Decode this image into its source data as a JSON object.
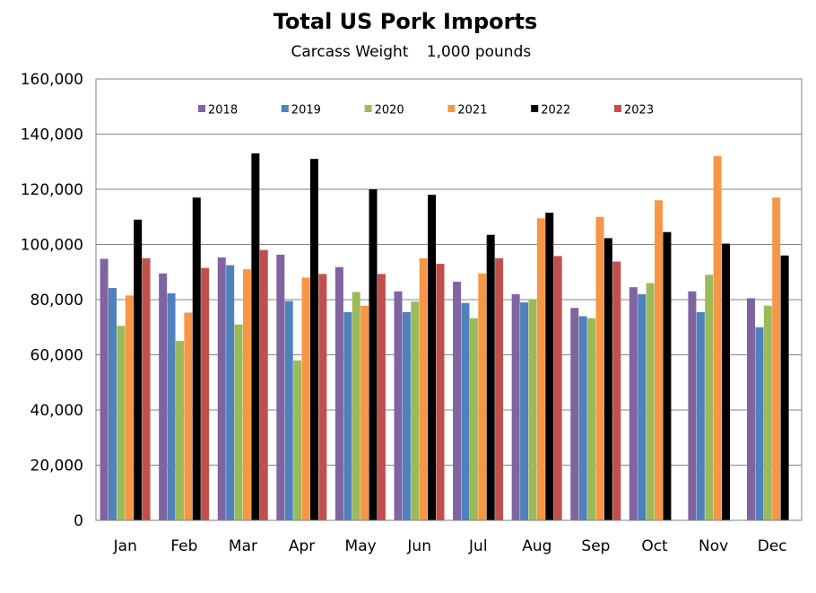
{
  "chart_data": {
    "type": "bar",
    "title": "Total US Pork Imports",
    "subtitle_left": "Carcass  Weight",
    "subtitle_right": "1,000 pounds",
    "xlabel": "",
    "ylabel": "",
    "ylim": [
      0,
      160000
    ],
    "y_ticks": [
      0,
      20000,
      40000,
      60000,
      80000,
      100000,
      120000,
      140000,
      160000
    ],
    "y_tick_labels": [
      "0",
      "20,000",
      "40,000",
      "60,000",
      "80,000",
      "100,000",
      "120,000",
      "140,000",
      "160,000"
    ],
    "grid": true,
    "legend_position": "top-center",
    "categories": [
      "Jan",
      "Feb",
      "Mar",
      "Apr",
      "May",
      "Jun",
      "Jul",
      "Aug",
      "Sep",
      "Oct",
      "Nov",
      "Dec"
    ],
    "series": [
      {
        "name": "2018",
        "color": "#8064A2",
        "values": [
          94800,
          89500,
          95300,
          96300,
          91800,
          83000,
          86500,
          82000,
          77000,
          84500,
          83000,
          80500
        ]
      },
      {
        "name": "2019",
        "color": "#4F81BD",
        "values": [
          84200,
          82300,
          92500,
          79500,
          75500,
          75500,
          78800,
          79000,
          74000,
          82000,
          75500,
          70000
        ]
      },
      {
        "name": "2020",
        "color": "#9BBB59",
        "values": [
          70500,
          65000,
          71000,
          58000,
          82800,
          79300,
          73300,
          80000,
          73300,
          86000,
          89000,
          77800
        ]
      },
      {
        "name": "2021",
        "color": "#F79646",
        "values": [
          81500,
          75300,
          91000,
          88000,
          77800,
          95000,
          89500,
          109500,
          110000,
          116000,
          132000,
          117000
        ]
      },
      {
        "name": "2022",
        "color": "#000000",
        "values": [
          109000,
          117000,
          133000,
          131000,
          120000,
          118000,
          103500,
          111500,
          102300,
          104500,
          100300,
          96000
        ]
      },
      {
        "name": "2023",
        "color": "#C0504D",
        "values": [
          95000,
          91500,
          98000,
          89300,
          89300,
          93000,
          95000,
          95800,
          93800,
          null,
          null,
          null
        ]
      }
    ]
  }
}
